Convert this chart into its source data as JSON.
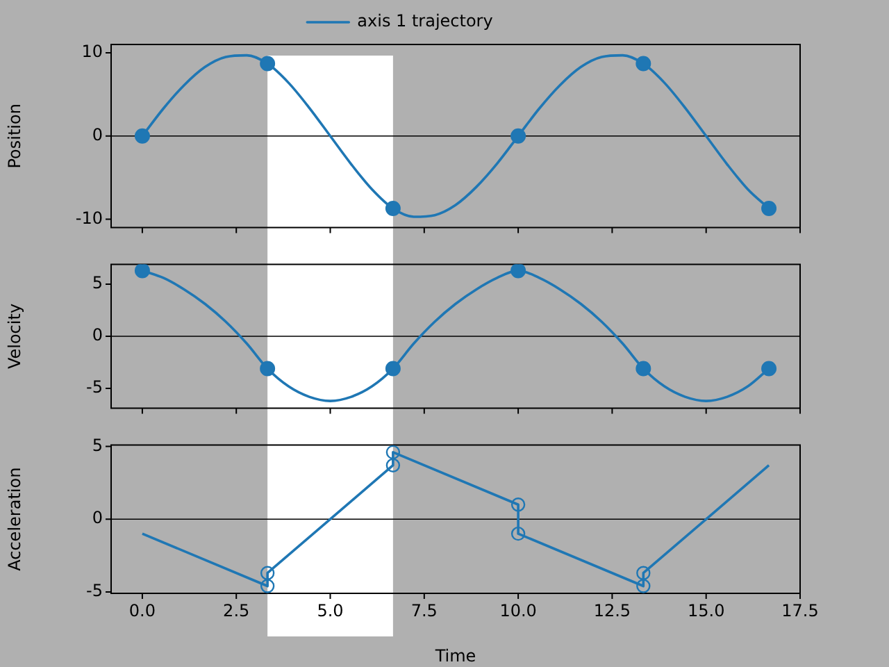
{
  "chart_data": [
    {
      "type": "line",
      "ylabel": "Position",
      "xlim": [
        -0.83,
        17.5
      ],
      "xticks": [
        0,
        2.5,
        5,
        7.5,
        10,
        12.5,
        15,
        17.5
      ],
      "ylim": [
        -11,
        11
      ],
      "yticks": [
        -10,
        0,
        10
      ],
      "tick_labels": "y",
      "legend": "top",
      "line_style": "solid",
      "series": [
        {
          "name": "axis 1 trajectory",
          "color": "#1f77b4",
          "x": [
            0,
            0.56,
            1.11,
            1.67,
            2.22,
            2.78,
            3.33,
            3.89,
            4.44,
            5,
            5.56,
            6.11,
            6.67,
            7.22,
            7.78,
            8.33,
            8.89,
            9.44,
            10,
            10.56,
            11.11,
            11.67,
            12.22,
            12.78,
            13.33,
            13.89,
            14.44,
            15,
            15.56,
            16.11,
            16.67
          ],
          "values": [
            0,
            3.3,
            6.1,
            8.3,
            9.5,
            9.7,
            8.7,
            6.4,
            3.4,
            0,
            -3.4,
            -6.4,
            -8.7,
            -9.7,
            -9.5,
            -8.3,
            -6.1,
            -3.3,
            0,
            3.3,
            6.1,
            8.3,
            9.5,
            9.7,
            8.7,
            6.4,
            3.4,
            0,
            -3.4,
            -6.4,
            -8.7
          ]
        },
        {
          "type": "scatter",
          "color": "#1f77b4",
          "marker": "circle",
          "x": [
            0,
            3.33,
            6.67,
            10,
            13.33,
            16.67
          ],
          "values": [
            0,
            8.7,
            -8.7,
            0,
            8.7,
            -8.7
          ]
        }
      ],
      "ref_lines": [
        {
          "axis": "y",
          "value": 0,
          "color": "#000000"
        }
      ],
      "bands": [
        {
          "axis": "x",
          "from": 3.33,
          "to": 6.67,
          "color": "#ffffff"
        }
      ]
    },
    {
      "type": "line",
      "ylabel": "Velocity",
      "xlim": [
        -0.83,
        17.5
      ],
      "xticks": [
        0,
        2.5,
        5,
        7.5,
        10,
        12.5,
        15,
        17.5
      ],
      "ylim": [
        -6.9,
        6.9
      ],
      "yticks": [
        -5,
        0,
        5
      ],
      "tick_labels": "y",
      "line_style": "solid",
      "series": [
        {
          "color": "#1f77b4",
          "x": [
            0,
            0.56,
            1.11,
            1.67,
            2.22,
            2.78,
            3.33,
            3.89,
            4.44,
            5,
            5.56,
            6.11,
            6.67,
            7.22,
            7.78,
            8.33,
            8.89,
            9.44,
            10,
            10.56,
            11.11,
            11.67,
            12.22,
            12.78,
            13.33,
            13.89,
            14.44,
            15,
            15.56,
            16.11,
            16.67
          ],
          "values": [
            6.3,
            5.6,
            4.5,
            3.1,
            1.4,
            -0.7,
            -3.1,
            -4.8,
            -5.8,
            -6.2,
            -5.8,
            -4.8,
            -3.1,
            -0.7,
            1.4,
            3.1,
            4.5,
            5.6,
            6.3,
            5.6,
            4.5,
            3.1,
            1.4,
            -0.7,
            -3.1,
            -4.8,
            -5.8,
            -6.2,
            -5.8,
            -4.8,
            -3.1
          ]
        },
        {
          "type": "scatter",
          "color": "#1f77b4",
          "marker": "circle",
          "x": [
            0,
            3.33,
            6.67,
            10,
            13.33,
            16.67
          ],
          "values": [
            6.3,
            -3.1,
            -3.1,
            6.3,
            -3.1,
            -3.1
          ]
        }
      ],
      "ref_lines": [
        {
          "axis": "y",
          "value": 0,
          "color": "#000000"
        }
      ],
      "bands": [
        {
          "axis": "x",
          "from": 3.33,
          "to": 6.67,
          "color": "#ffffff"
        }
      ]
    },
    {
      "type": "line",
      "ylabel": "Acceleration",
      "xlabel": "Time",
      "xlim": [
        -0.83,
        17.5
      ],
      "xticks": [
        {
          "value": 0,
          "label": "0.0"
        },
        2.5,
        {
          "value": 5,
          "label": "5.0"
        },
        7.5,
        {
          "value": 10,
          "label": "10.0"
        },
        12.5,
        {
          "value": 15,
          "label": "15.0"
        },
        17.5
      ],
      "ylim": [
        -5.1,
        5.1
      ],
      "yticks": [
        -5,
        0,
        5
      ],
      "line_style": "solid",
      "series": [
        {
          "color": "#1f77b4",
          "x": [
            0,
            3.33,
            3.33,
            6.67,
            6.67,
            10,
            10,
            13.33,
            13.33,
            16.67
          ],
          "values": [
            -1,
            -4.6,
            -3.7,
            3.7,
            4.6,
            1,
            -1,
            -4.6,
            -3.7,
            3.7
          ]
        },
        {
          "type": "scatter",
          "color": "#1f77b4",
          "marker": "circle",
          "x": [
            3.33,
            3.33,
            6.67,
            6.67,
            10,
            10,
            13.33,
            13.33
          ],
          "values": [
            -4.6,
            -3.7,
            3.7,
            4.6,
            1,
            -1,
            -4.6,
            -3.7
          ]
        }
      ],
      "ref_lines": [
        {
          "axis": "y",
          "value": 0,
          "color": "#000000"
        }
      ],
      "bands": [
        {
          "axis": "x",
          "from": 3.33,
          "to": 6.67,
          "color": "#ffffff"
        }
      ]
    }
  ]
}
